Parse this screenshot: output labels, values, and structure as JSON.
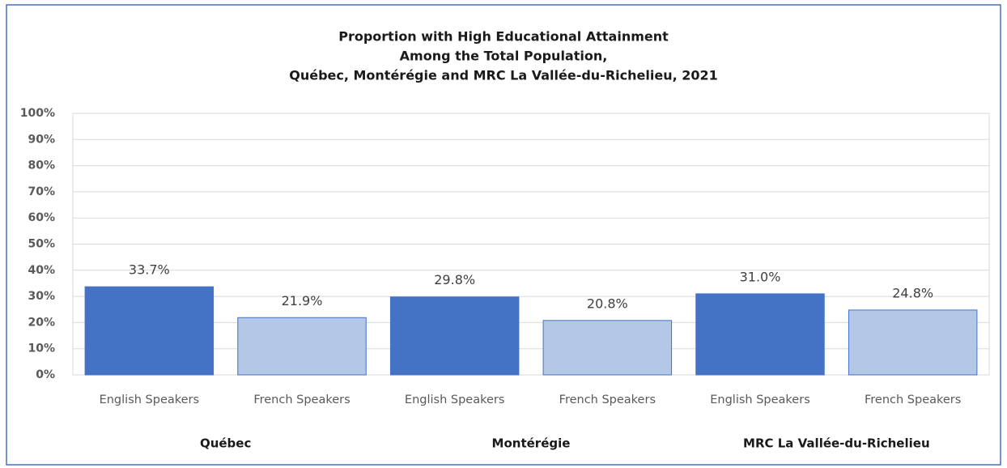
{
  "chart_data": {
    "type": "bar",
    "title": [
      "Proportion with High Educational  Attainment",
      "Among the Total Population,",
      "Québec, Montérégie and MRC La Vallée-du-Richelieu,  2021"
    ],
    "categories": [
      "English Speakers",
      "French Speakers",
      "English Speakers",
      "French Speakers",
      "English Speakers",
      "French Speakers"
    ],
    "groups": [
      "Québec",
      "Montérégie",
      "MRC La Vallée-du-Richelieu"
    ],
    "values": [
      33.7,
      21.9,
      29.8,
      20.8,
      31.0,
      24.8
    ],
    "value_labels": [
      "33.7%",
      "21.9%",
      "29.8%",
      "20.8%",
      "31.0%",
      "24.8%"
    ],
    "colors": [
      "#4472c4",
      "#b4c7e7",
      "#4472c4",
      "#b4c7e7",
      "#4472c4",
      "#b4c7e7"
    ],
    "ylim": [
      0,
      100
    ],
    "yticks": [
      {
        "value": 0,
        "label": "0%"
      },
      {
        "value": 10,
        "label": "10%"
      },
      {
        "value": 20,
        "label": "20%"
      },
      {
        "value": 30,
        "label": "30%"
      },
      {
        "value": 40,
        "label": "40%"
      },
      {
        "value": 50,
        "label": "50%"
      },
      {
        "value": 60,
        "label": "60%"
      },
      {
        "value": 70,
        "label": "70%"
      },
      {
        "value": 80,
        "label": "80%"
      },
      {
        "value": 90,
        "label": "90%"
      },
      {
        "value": 100,
        "label": "100%"
      }
    ],
    "grid": true
  }
}
